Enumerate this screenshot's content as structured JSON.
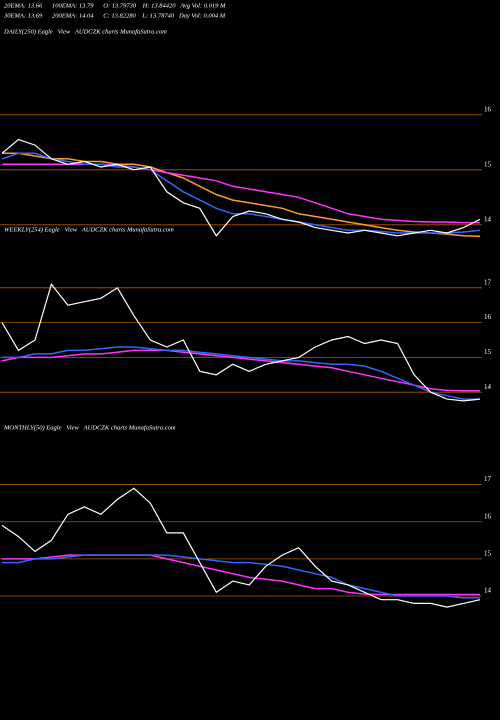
{
  "header": {
    "line1": "20EMA: 13.66      100EMA: 13.79      O: 13.79730    H: 13.84420   Avg Vol: 0.019 M",
    "line2": "30EMA: 13.69      200EMA: 14.04      C: 13.82280    L: 13.78740   Day Vol: 0.004 M"
  },
  "chart_data": [
    {
      "type": "line",
      "title": "DAILY(250) Eagle   View   AUDCZK charts MunafaSutra.com",
      "ylim": [
        13.36,
        17.36
      ],
      "yticks": [
        14,
        15,
        16
      ],
      "grid": true,
      "grid_color": "#b05a00",
      "series": [
        {
          "color": "#ff9933",
          "values": [
            15.3,
            15.3,
            15.25,
            15.2,
            15.2,
            15.15,
            15.15,
            15.1,
            15.1,
            15.05,
            14.95,
            14.85,
            14.7,
            14.55,
            14.45,
            14.4,
            14.35,
            14.3,
            14.2,
            14.15,
            14.1,
            14.05,
            14.0,
            13.95,
            13.9,
            13.87,
            13.85,
            13.83,
            13.8,
            13.79
          ]
        },
        {
          "color": "#ff33ff",
          "values": [
            15.1,
            15.1,
            15.1,
            15.1,
            15.1,
            15.1,
            15.1,
            15.08,
            15.05,
            15.0,
            14.95,
            14.9,
            14.85,
            14.8,
            14.7,
            14.65,
            14.6,
            14.55,
            14.5,
            14.4,
            14.3,
            14.2,
            14.15,
            14.1,
            14.08,
            14.06,
            14.05,
            14.05,
            14.04,
            14.04
          ]
        },
        {
          "color": "#3366ff",
          "values": [
            15.2,
            15.3,
            15.3,
            15.2,
            15.15,
            15.1,
            15.1,
            15.05,
            15.05,
            15.0,
            14.8,
            14.6,
            14.45,
            14.3,
            14.2,
            14.2,
            14.15,
            14.1,
            14.05,
            14.0,
            13.95,
            13.9,
            13.9,
            13.88,
            13.85,
            13.85,
            13.85,
            13.85,
            13.87,
            13.9
          ]
        },
        {
          "color": "#ffffff",
          "values": [
            15.3,
            15.55,
            15.45,
            15.2,
            15.1,
            15.15,
            15.05,
            15.1,
            15.0,
            15.05,
            14.6,
            14.4,
            14.3,
            13.8,
            14.15,
            14.25,
            14.2,
            14.1,
            14.05,
            13.95,
            13.9,
            13.85,
            13.9,
            13.85,
            13.8,
            13.85,
            13.9,
            13.85,
            13.95,
            14.1
          ]
        }
      ]
    },
    {
      "type": "line",
      "title": "WEEKLY(254) Eagle   View   AUDCZK charts MunafaSutra.com",
      "ylim": [
        13.2,
        17.8
      ],
      "yticks": [
        14,
        15,
        16,
        17
      ],
      "grid": true,
      "grid_color": "#b05a00",
      "series": [
        {
          "color": "#ff33ff",
          "values": [
            14.9,
            15.0,
            15.0,
            15.0,
            15.05,
            15.1,
            15.1,
            15.15,
            15.2,
            15.2,
            15.2,
            15.15,
            15.1,
            15.05,
            15.0,
            14.95,
            14.9,
            14.85,
            14.8,
            14.75,
            14.7,
            14.6,
            14.5,
            14.4,
            14.3,
            14.2,
            14.1,
            14.05,
            14.04,
            14.04
          ]
        },
        {
          "color": "#3366ff",
          "values": [
            15.0,
            15.0,
            15.1,
            15.1,
            15.2,
            15.2,
            15.25,
            15.3,
            15.3,
            15.25,
            15.2,
            15.2,
            15.15,
            15.1,
            15.05,
            15.0,
            14.95,
            14.9,
            14.9,
            14.85,
            14.8,
            14.8,
            14.75,
            14.6,
            14.4,
            14.2,
            14.0,
            13.9,
            13.8,
            13.8
          ]
        },
        {
          "color": "#ffffff",
          "values": [
            16.0,
            15.2,
            15.5,
            17.1,
            16.5,
            16.6,
            16.7,
            17.0,
            16.2,
            15.5,
            15.3,
            15.5,
            14.6,
            14.5,
            14.8,
            14.6,
            14.8,
            14.9,
            15.0,
            15.3,
            15.5,
            15.6,
            15.4,
            15.5,
            15.4,
            14.5,
            14.0,
            13.8,
            13.75,
            13.8
          ]
        }
      ]
    },
    {
      "type": "line",
      "title": "MONTHLY(50) Eagle   View   AUDCZK charts MunafaSutra.com",
      "ylim": [
        11.2,
        18.2
      ],
      "yticks": [
        14,
        15,
        16,
        17
      ],
      "grid": true,
      "grid_color": "#b05a00",
      "series": [
        {
          "color": "#ff33ff",
          "values": [
            15.0,
            15.0,
            15.0,
            15.05,
            15.1,
            15.1,
            15.1,
            15.1,
            15.1,
            15.1,
            15.0,
            14.9,
            14.8,
            14.7,
            14.6,
            14.5,
            14.45,
            14.4,
            14.3,
            14.2,
            14.2,
            14.1,
            14.05,
            14.04,
            14.04,
            14.04,
            14.04,
            14.04,
            14.04,
            14.04
          ]
        },
        {
          "color": "#3366ff",
          "values": [
            14.9,
            14.9,
            15.0,
            15.0,
            15.05,
            15.1,
            15.1,
            15.1,
            15.1,
            15.1,
            15.1,
            15.05,
            15.0,
            14.95,
            14.9,
            14.9,
            14.85,
            14.8,
            14.7,
            14.6,
            14.5,
            14.3,
            14.2,
            14.1,
            14.0,
            14.0,
            14.0,
            14.0,
            13.95,
            13.95
          ]
        },
        {
          "color": "#ffffff",
          "values": [
            15.9,
            15.6,
            15.2,
            15.5,
            16.2,
            16.4,
            16.2,
            16.6,
            16.9,
            16.5,
            15.7,
            15.7,
            14.9,
            14.1,
            14.4,
            14.3,
            14.8,
            15.1,
            15.3,
            14.8,
            14.4,
            14.3,
            14.1,
            13.9,
            13.9,
            13.8,
            13.8,
            13.7,
            13.8,
            13.9
          ]
        }
      ]
    }
  ]
}
